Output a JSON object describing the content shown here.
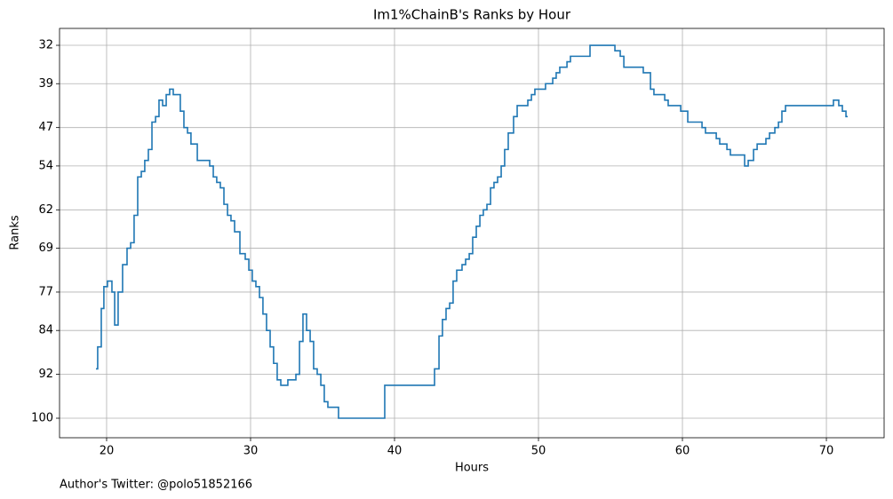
{
  "chart_data": {
    "type": "line",
    "step": "post",
    "title": "Im1%ChainB's Ranks by Hour",
    "x_label": "Hours",
    "y_label": "Ranks",
    "footnote": "Author's Twitter: @polo51852166",
    "color": "#1f77b4",
    "grid": true,
    "y_inverted": true,
    "xlim": [
      16.73,
      74.01
    ],
    "ylim": [
      103.56,
      28.92
    ],
    "xticks": [
      20,
      30,
      40,
      50,
      60,
      70
    ],
    "yticks": [
      32,
      39,
      47,
      54,
      62,
      69,
      77,
      84,
      92,
      100
    ],
    "x": [
      19.26,
      19.38,
      19.63,
      19.81,
      20.06,
      20.37,
      20.56,
      20.8,
      21.11,
      21.42,
      21.67,
      21.91,
      22.16,
      22.41,
      22.65,
      22.9,
      23.15,
      23.4,
      23.64,
      23.89,
      24.14,
      24.38,
      24.63,
      25.12,
      25.37,
      25.62,
      25.86,
      26.3,
      27.16,
      27.41,
      27.65,
      27.9,
      28.15,
      28.4,
      28.64,
      28.89,
      29.26,
      29.63,
      29.88,
      30.12,
      30.37,
      30.62,
      30.86,
      31.11,
      31.36,
      31.6,
      31.85,
      32.1,
      32.59,
      33.15,
      33.4,
      33.64,
      33.89,
      34.14,
      34.38,
      34.63,
      34.88,
      35.12,
      35.37,
      36.11,
      39.32,
      42.78,
      43.09,
      43.33,
      43.58,
      43.83,
      44.07,
      44.32,
      44.69,
      44.94,
      45.19,
      45.43,
      45.68,
      45.93,
      46.17,
      46.42,
      46.67,
      46.91,
      47.16,
      47.41,
      47.65,
      47.9,
      48.27,
      48.52,
      49.26,
      49.51,
      49.75,
      50.49,
      50.99,
      51.23,
      51.48,
      51.98,
      52.22,
      53.58,
      55.31,
      55.68,
      55.93,
      57.28,
      57.78,
      58.02,
      58.77,
      59.01,
      59.88,
      60.37,
      61.36,
      61.6,
      62.35,
      62.59,
      63.09,
      63.33,
      64.32,
      64.57,
      64.94,
      65.19,
      65.8,
      66.05,
      66.42,
      66.67,
      66.91,
      67.16,
      70.49,
      70.86,
      71.11,
      71.36,
      71.48
    ],
    "series": [
      {
        "name": "Ranks",
        "values": [
          91,
          87,
          80,
          76,
          75,
          77,
          83,
          77,
          72,
          69,
          68,
          63,
          56,
          55,
          53,
          51,
          46,
          45,
          42,
          43,
          41,
          40,
          41,
          44,
          47,
          48,
          50,
          53,
          54,
          56,
          57,
          58,
          61,
          63,
          64,
          66,
          70,
          71,
          73,
          75,
          76,
          78,
          81,
          84,
          87,
          90,
          93,
          94,
          93,
          92,
          86,
          81,
          84,
          86,
          91,
          92,
          94,
          97,
          98,
          100,
          94,
          91,
          85,
          82,
          80,
          79,
          75,
          73,
          72,
          71,
          70,
          67,
          65,
          63,
          62,
          61,
          58,
          57,
          56,
          54,
          51,
          48,
          45,
          43,
          42,
          41,
          40,
          39,
          38,
          37,
          36,
          35,
          34,
          32,
          33,
          34,
          36,
          37,
          40,
          41,
          42,
          43,
          44,
          46,
          47,
          48,
          49,
          50,
          51,
          52,
          54,
          53,
          51,
          50,
          49,
          48,
          47,
          46,
          44,
          43,
          42,
          43,
          44,
          45,
          45
        ]
      }
    ]
  }
}
